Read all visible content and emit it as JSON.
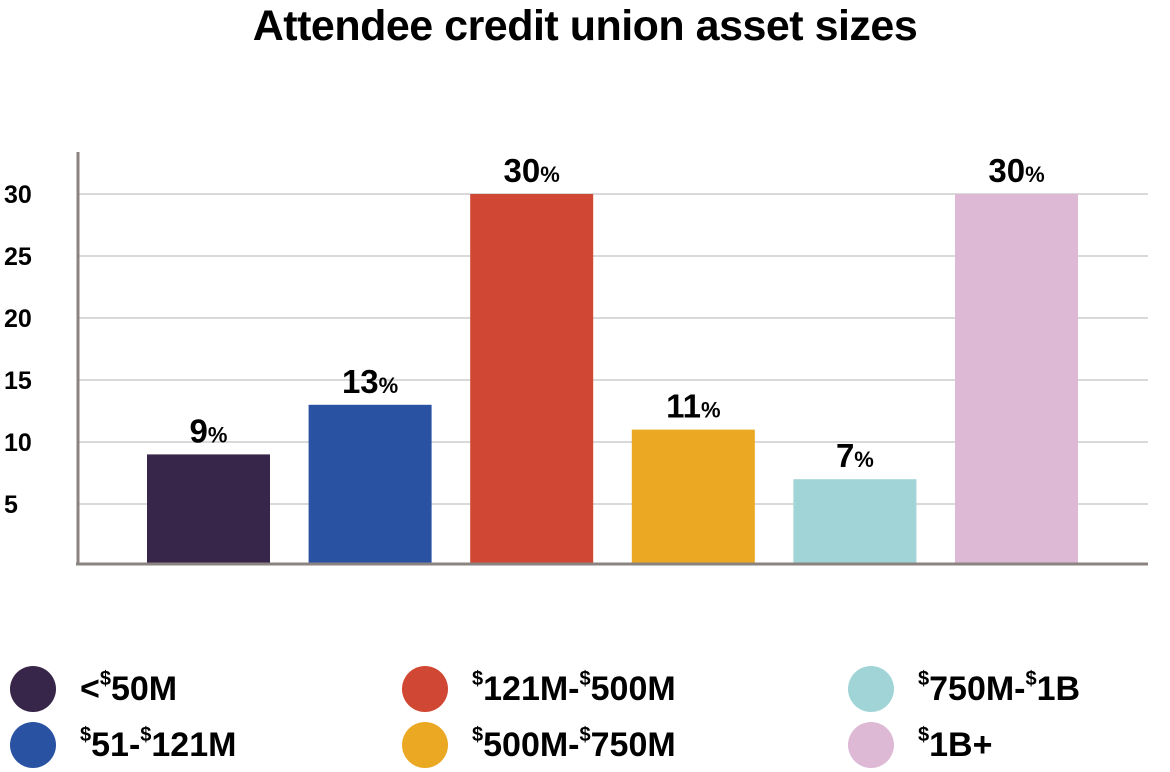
{
  "chart_data": {
    "type": "bar",
    "title": "Attendee credit union asset sizes",
    "xlabel": "",
    "ylabel": "",
    "ylim": [
      0,
      33
    ],
    "yticks": [
      5,
      10,
      15,
      20,
      25,
      30
    ],
    "grid": true,
    "categories": [
      "<$50M",
      "$51-$121M",
      "$121M-$500M",
      "$500M-$750M",
      "$750M-$1B",
      "$1B+"
    ],
    "values": [
      9,
      13,
      30,
      11,
      7,
      30
    ],
    "data_labels": [
      "9%",
      "13%",
      "30%",
      "11%",
      "7%",
      "30%"
    ],
    "colors": [
      "#37264a",
      "#2a52a3",
      "#d04733",
      "#eba823",
      "#a0d4d6",
      "#ddb9d6"
    ],
    "legend_position": "bottom"
  }
}
